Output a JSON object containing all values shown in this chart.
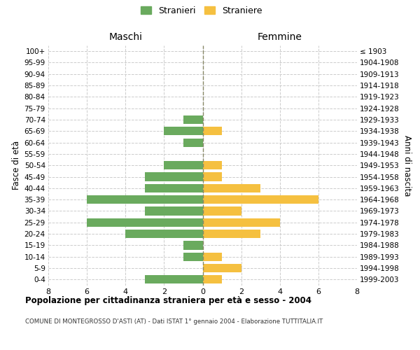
{
  "age_groups_bottom_to_top": [
    "0-4",
    "5-9",
    "10-14",
    "15-19",
    "20-24",
    "25-29",
    "30-34",
    "35-39",
    "40-44",
    "45-49",
    "50-54",
    "55-59",
    "60-64",
    "65-69",
    "70-74",
    "75-79",
    "80-84",
    "85-89",
    "90-94",
    "95-99",
    "100+"
  ],
  "birth_years_bottom_to_top": [
    "1999-2003",
    "1994-1998",
    "1989-1993",
    "1984-1988",
    "1979-1983",
    "1974-1978",
    "1969-1973",
    "1964-1968",
    "1959-1963",
    "1954-1958",
    "1949-1953",
    "1944-1948",
    "1939-1943",
    "1934-1938",
    "1929-1933",
    "1924-1928",
    "1919-1923",
    "1914-1918",
    "1909-1913",
    "1904-1908",
    "≤ 1903"
  ],
  "maschi_bottom_to_top": [
    3,
    0,
    1,
    1,
    4,
    6,
    3,
    6,
    3,
    3,
    2,
    0,
    1,
    2,
    1,
    0,
    0,
    0,
    0,
    0,
    0
  ],
  "femmine_bottom_to_top": [
    1,
    2,
    1,
    0,
    3,
    4,
    2,
    6,
    3,
    1,
    1,
    0,
    0,
    1,
    0,
    0,
    0,
    0,
    0,
    0,
    0
  ],
  "color_maschi": "#6aaa5e",
  "color_femmine": "#f5c040",
  "xlim": 8,
  "title": "Popolazione per cittadinanza straniera per età e sesso - 2004",
  "subtitle": "COMUNE DI MONTEGROSSO D'ASTI (AT) - Dati ISTAT 1° gennaio 2004 - Elaborazione TUTTITALIA.IT",
  "ylabel_left": "Fasce di età",
  "ylabel_right": "Anni di nascita",
  "label_maschi": "Maschi",
  "label_femmine": "Femmine",
  "legend_stranieri": "Stranieri",
  "legend_straniere": "Straniere",
  "bar_height": 0.75,
  "background_color": "#ffffff"
}
